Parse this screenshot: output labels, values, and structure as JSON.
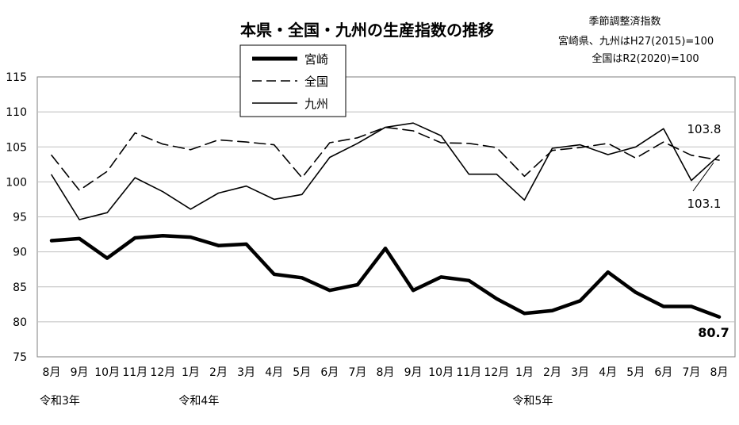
{
  "chart_data": {
    "type": "line",
    "title": "本県・全国・九州の生産指数の推移",
    "notes": [
      "季節調整済指数",
      "宮崎県、九州はH27(2015)=100",
      "全国はR2(2020)=100"
    ],
    "categories": [
      "8月",
      "9月",
      "10月",
      "11月",
      "12月",
      "1月",
      "2月",
      "3月",
      "4月",
      "5月",
      "6月",
      "7月",
      "8月",
      "9月",
      "10月",
      "11月",
      "12月",
      "1月",
      "2月",
      "3月",
      "4月",
      "5月",
      "6月",
      "7月",
      "8月"
    ],
    "era_labels": [
      {
        "index": 0,
        "label": "令和3年"
      },
      {
        "index": 5,
        "label": "令和4年"
      },
      {
        "index": 17,
        "label": "令和5年"
      }
    ],
    "ylim": [
      75,
      115
    ],
    "yticks": [
      "75",
      "80",
      "85",
      "90",
      "95",
      "100",
      "105",
      "110",
      "115"
    ],
    "grid": true,
    "legend": "top-center",
    "series": [
      {
        "name": "宮崎",
        "style": "thick-solid",
        "color": "#000000",
        "values": [
          91.6,
          91.9,
          89.1,
          92.0,
          92.3,
          92.1,
          90.9,
          91.1,
          86.8,
          86.3,
          84.5,
          85.3,
          90.5,
          84.5,
          86.4,
          85.9,
          83.3,
          81.2,
          81.6,
          83.0,
          87.1,
          84.2,
          82.2,
          82.2,
          80.7
        ]
      },
      {
        "name": "全国",
        "style": "dashed",
        "color": "#000000",
        "values": [
          103.8,
          98.8,
          101.5,
          107.0,
          105.4,
          104.6,
          106.0,
          105.7,
          105.3,
          100.6,
          105.6,
          106.3,
          107.8,
          107.3,
          105.6,
          105.5,
          104.9,
          100.8,
          104.5,
          104.9,
          105.5,
          103.4,
          105.7,
          103.8,
          103.1
        ]
      },
      {
        "name": "九州",
        "style": "solid",
        "color": "#000000",
        "values": [
          101.0,
          94.6,
          95.6,
          100.6,
          98.6,
          96.1,
          98.4,
          99.4,
          97.5,
          98.2,
          103.5,
          105.5,
          107.8,
          108.4,
          106.6,
          101.1,
          101.1,
          97.4,
          104.8,
          105.3,
          103.9,
          105.0,
          107.6,
          100.2,
          103.8
        ]
      }
    ],
    "annotations": [
      "103.8",
      "103.1",
      "80.7"
    ]
  }
}
